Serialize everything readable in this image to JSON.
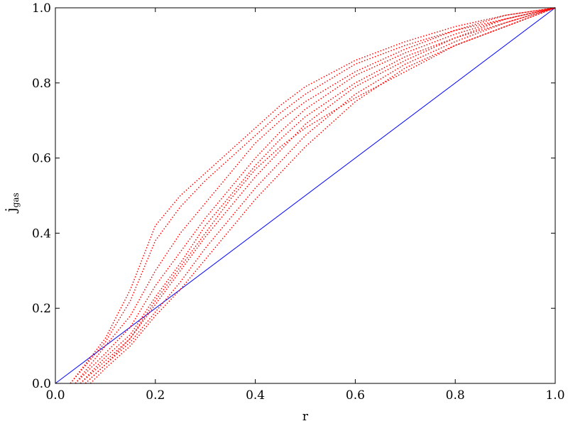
{
  "chart_data": {
    "type": "line",
    "xlabel": "r",
    "ylabel": "j",
    "ylabel_sub": "gas",
    "xlim": [
      0,
      1
    ],
    "ylim": [
      0,
      1
    ],
    "xticks": [
      {
        "value": 0,
        "label": "0.0"
      },
      0.2,
      0.4,
      0.6,
      0.8,
      {
        "value": 1,
        "label": "1.0"
      }
    ],
    "yticks": [
      {
        "value": 0,
        "label": "0.0"
      },
      0.2,
      0.4,
      0.6,
      0.8,
      {
        "value": 1,
        "label": "1.0"
      }
    ],
    "grid": false,
    "series": [
      {
        "color": "#0000ff",
        "style": "solid",
        "x": [
          0,
          1
        ],
        "values": [
          0,
          1
        ]
      },
      {
        "color": "#ff0000",
        "style": "dotted",
        "x": [
          0.03,
          0.1,
          0.15,
          0.2,
          0.25,
          0.3,
          0.35,
          0.4,
          0.45,
          0.5,
          0.6,
          0.7,
          0.8,
          0.9,
          1.0
        ],
        "values": [
          0,
          0.12,
          0.25,
          0.42,
          0.5,
          0.56,
          0.62,
          0.68,
          0.74,
          0.79,
          0.86,
          0.91,
          0.95,
          0.98,
          1.0
        ]
      },
      {
        "color": "#ff0000",
        "style": "dotted",
        "x": [
          0.03,
          0.1,
          0.15,
          0.2,
          0.25,
          0.3,
          0.35,
          0.4,
          0.45,
          0.5,
          0.6,
          0.7,
          0.8,
          0.9,
          1.0
        ],
        "values": [
          0,
          0.11,
          0.22,
          0.38,
          0.47,
          0.54,
          0.6,
          0.66,
          0.72,
          0.77,
          0.85,
          0.9,
          0.94,
          0.98,
          1.0
        ]
      },
      {
        "color": "#ff0000",
        "style": "dotted",
        "x": [
          0.04,
          0.1,
          0.15,
          0.2,
          0.25,
          0.3,
          0.35,
          0.4,
          0.45,
          0.5,
          0.6,
          0.7,
          0.8,
          0.9,
          1.0
        ],
        "values": [
          0,
          0.1,
          0.18,
          0.3,
          0.4,
          0.48,
          0.56,
          0.64,
          0.7,
          0.75,
          0.83,
          0.89,
          0.94,
          0.97,
          1.0
        ]
      },
      {
        "color": "#ff0000",
        "style": "dotted",
        "x": [
          0.04,
          0.1,
          0.15,
          0.2,
          0.25,
          0.3,
          0.35,
          0.4,
          0.45,
          0.5,
          0.6,
          0.7,
          0.8,
          0.9,
          1.0
        ],
        "values": [
          0,
          0.08,
          0.15,
          0.26,
          0.35,
          0.44,
          0.52,
          0.6,
          0.67,
          0.73,
          0.82,
          0.88,
          0.93,
          0.97,
          1.0
        ]
      },
      {
        "color": "#ff0000",
        "style": "dotted",
        "x": [
          0.05,
          0.1,
          0.15,
          0.2,
          0.25,
          0.3,
          0.35,
          0.4,
          0.45,
          0.5,
          0.6,
          0.7,
          0.8,
          0.9,
          1.0
        ],
        "values": [
          0,
          0.07,
          0.13,
          0.23,
          0.32,
          0.42,
          0.5,
          0.58,
          0.65,
          0.71,
          0.8,
          0.87,
          0.92,
          0.97,
          1.0
        ]
      },
      {
        "color": "#ff0000",
        "style": "dotted",
        "x": [
          0.05,
          0.1,
          0.15,
          0.2,
          0.25,
          0.3,
          0.35,
          0.4,
          0.45,
          0.5,
          0.6,
          0.7,
          0.8,
          0.9,
          1.0
        ],
        "values": [
          0,
          0.06,
          0.12,
          0.21,
          0.3,
          0.39,
          0.47,
          0.55,
          0.62,
          0.69,
          0.79,
          0.86,
          0.92,
          0.96,
          1.0
        ]
      },
      {
        "color": "#ff0000",
        "style": "dotted",
        "x": [
          0.06,
          0.1,
          0.15,
          0.2,
          0.25,
          0.3,
          0.35,
          0.4,
          0.45,
          0.5,
          0.6,
          0.7,
          0.8,
          0.9,
          1.0
        ],
        "values": [
          0,
          0.05,
          0.11,
          0.19,
          0.27,
          0.36,
          0.44,
          0.52,
          0.59,
          0.66,
          0.77,
          0.85,
          0.91,
          0.96,
          1.0
        ]
      },
      {
        "color": "#ff0000",
        "style": "dotted",
        "x": [
          0.07,
          0.1,
          0.15,
          0.2,
          0.25,
          0.3,
          0.35,
          0.4,
          0.45,
          0.5,
          0.6,
          0.7,
          0.8,
          0.9,
          1.0
        ],
        "values": [
          0,
          0.04,
          0.1,
          0.18,
          0.25,
          0.33,
          0.41,
          0.49,
          0.56,
          0.63,
          0.75,
          0.84,
          0.9,
          0.95,
          1.0
        ]
      },
      {
        "color": "#ff0000",
        "style": "dotted",
        "x": [
          0.06,
          0.1,
          0.15,
          0.2,
          0.25,
          0.3,
          0.35,
          0.4,
          0.45,
          0.5,
          0.6,
          0.7,
          0.8,
          0.9,
          1.0
        ],
        "values": [
          0,
          0.05,
          0.12,
          0.22,
          0.31,
          0.4,
          0.49,
          0.57,
          0.63,
          0.68,
          0.76,
          0.83,
          0.9,
          0.95,
          1.0
        ]
      }
    ]
  }
}
